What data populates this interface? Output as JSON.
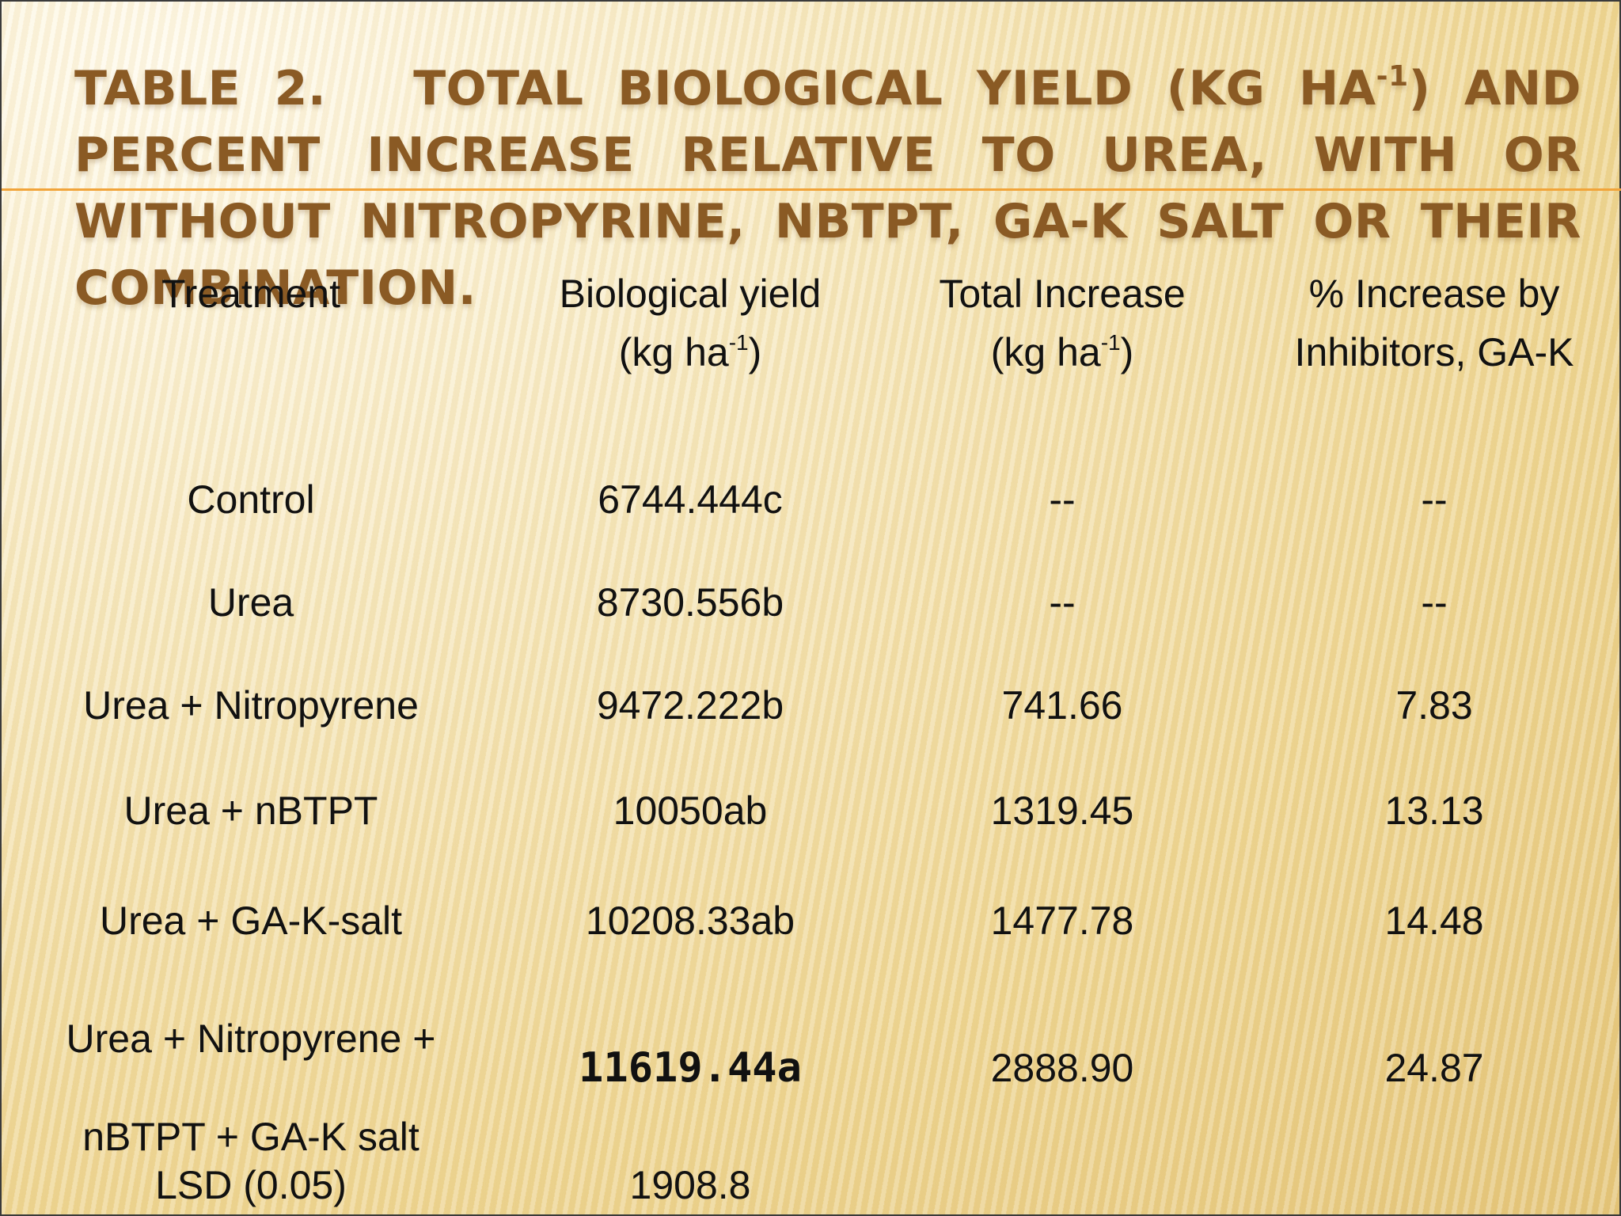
{
  "title": {
    "part1": "Table 2.",
    "part2": "Total Biological yield (kg ha",
    "sup": "-1",
    "part3": ") and percent increase relative to urea, with or without Nitropyrine, nBTPT, GA-K salt or their combination."
  },
  "table": {
    "headers": {
      "treatment": "Treatment",
      "yield_line1": "Biological yield",
      "yield_line2_pre": "(kg ha",
      "yield_line2_sup": "-1",
      "yield_line2_post": ")",
      "increase_line1": "Total Increase",
      "increase_line2_pre": "(kg ha",
      "increase_line2_sup": "-1",
      "increase_line2_post": ")",
      "percent_line1": "% Increase by",
      "percent_line2": "Inhibitors, GA-K"
    },
    "rows": [
      {
        "treatment": "Control",
        "yield": "6744.444c",
        "increase": "--",
        "percent": "--"
      },
      {
        "treatment": "Urea",
        "yield": "8730.556b",
        "increase": "--",
        "percent": "--"
      },
      {
        "treatment": "Urea + Nitropyrene",
        "yield": "9472.222b",
        "increase": "741.66",
        "percent": "7.83"
      },
      {
        "treatment": "Urea + nBTPT",
        "yield": "10050ab",
        "increase": "1319.45",
        "percent": "13.13"
      },
      {
        "treatment": "Urea + GA-K-salt",
        "yield": "10208.33ab",
        "increase": "1477.78",
        "percent": "14.48"
      },
      {
        "treatment_line1": "Urea + Nitropyrene +",
        "treatment_line2": "nBTPT + GA-K salt",
        "yield": "11619.44a",
        "increase": "2888.90",
        "percent": "24.87"
      }
    ],
    "lsd": {
      "label": "LSD (0.05)",
      "value": "1908.8"
    }
  }
}
